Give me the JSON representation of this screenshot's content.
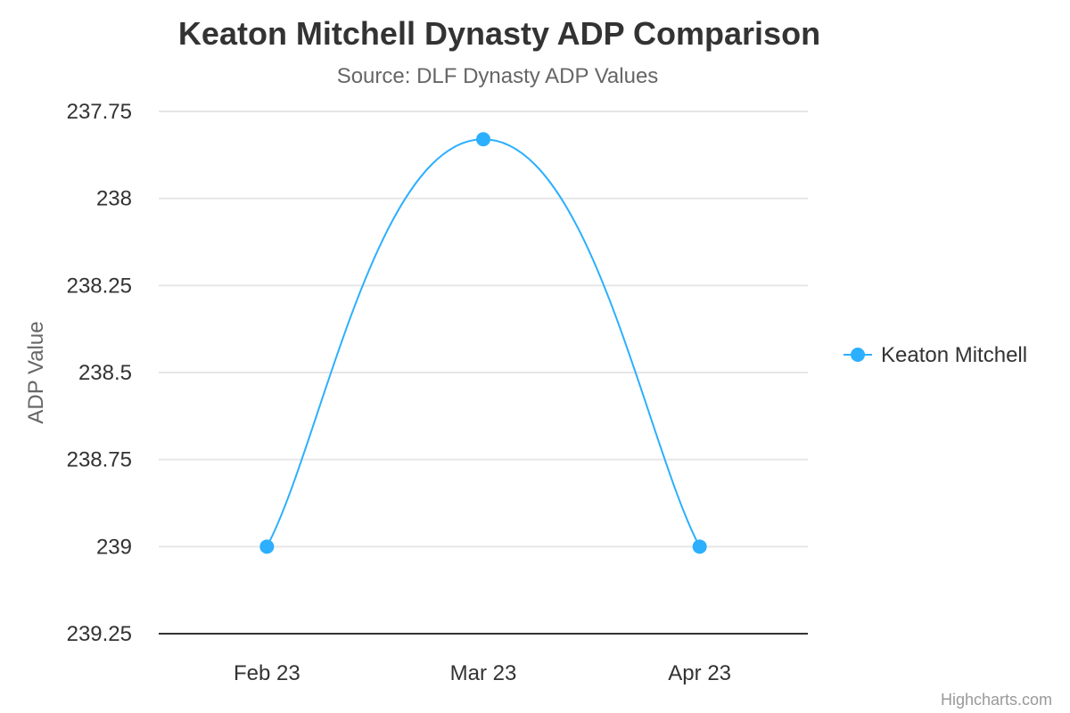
{
  "chart_data": {
    "type": "line",
    "title": "Keaton Mitchell Dynasty ADP Comparison",
    "subtitle": "Source: DLF Dynasty ADP Values",
    "ylabel": "ADP Value",
    "categories": [
      "Feb 23",
      "Mar 23",
      "Apr 23"
    ],
    "series": [
      {
        "name": "Keaton Mitchell",
        "values": [
          239,
          237.83,
          239
        ],
        "color": "#2caffe"
      }
    ],
    "y_axis": {
      "reversed": true,
      "ylim": [
        237.75,
        239.25
      ],
      "ticks": [
        237.75,
        238,
        238.25,
        238.5,
        238.75,
        239,
        239.25
      ],
      "tick_labels": [
        "237.75",
        "238",
        "238.25",
        "238.5",
        "238.75",
        "239",
        "239.25"
      ]
    },
    "grid": true,
    "legend_position": "right",
    "credits": "Highcharts.com"
  }
}
